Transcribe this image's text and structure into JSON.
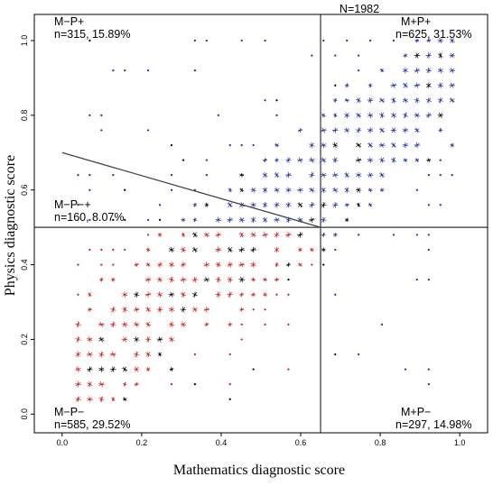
{
  "chart_data": {
    "type": "scatter",
    "title": "N=1982",
    "xlabel": "Mathematics diagnostic score",
    "ylabel": "Physics diagnostic score",
    "xlim": [
      -0.07,
      1.07
    ],
    "ylim": [
      -0.05,
      1.07
    ],
    "x_ticks": [
      "0.0",
      "0.2",
      "0.4",
      "0.6",
      "0.8",
      "1.0"
    ],
    "y_ticks": [
      "0.0",
      "0.2",
      "0.4",
      "0.6",
      "0.8",
      "1.0"
    ],
    "tick_values": [
      0,
      0.2,
      0.4,
      0.6,
      0.8,
      1.0
    ],
    "grid": false,
    "thresholds": {
      "x": 0.65,
      "y": 0.5
    },
    "regression_line": {
      "x": [
        0.0,
        0.65
      ],
      "y": [
        0.7,
        0.5
      ],
      "color": "#444444"
    },
    "quadrants": [
      {
        "name": "M−P+",
        "stats": "n=315, 15.89%"
      },
      {
        "name": "M+P+",
        "stats": "n=625, 31.53%"
      },
      {
        "name": "M−P−+",
        "stats": "n=160, 8.07%"
      },
      {
        "name": "M−P−",
        "stats": "n=585, 29.52%"
      },
      {
        "name": "M+P−",
        "stats": "n=297, 14.98%"
      }
    ],
    "colors": {
      "blue": "#1f2d9e",
      "red": "#cc1a1a",
      "black": "#000000",
      "axes": "#000000"
    },
    "math_grid": {
      "start": 0.04,
      "step": 0.0294,
      "count": 33
    },
    "physics_grid": {
      "start": 0.04,
      "step": 0.04,
      "count": 25
    }
  }
}
